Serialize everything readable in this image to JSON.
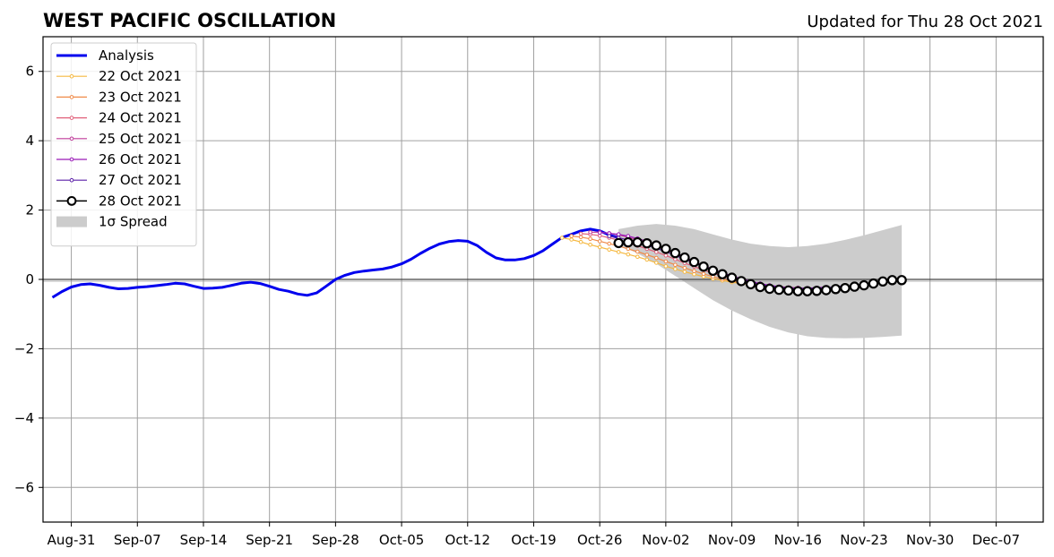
{
  "header": {
    "title": "WEST PACIFIC OSCILLATION",
    "updated": "Updated for Thu 28 Oct 2021"
  },
  "chart_data": {
    "type": "line",
    "title": "WEST PACIFIC OSCILLATION",
    "xlabel": "",
    "ylabel": "",
    "xlim": [
      "2021-08-28",
      "2021-12-12"
    ],
    "ylim": [
      -7,
      7
    ],
    "grid": true,
    "legend_position": "top-left",
    "x_ticks": [
      "Aug-31",
      "Sep-07",
      "Sep-14",
      "Sep-21",
      "Sep-28",
      "Oct-05",
      "Oct-12",
      "Oct-19",
      "Oct-26",
      "Nov-02",
      "Nov-09",
      "Nov-16",
      "Nov-23",
      "Nov-30",
      "Dec-07"
    ],
    "x_tick_dates": [
      "2021-08-31",
      "2021-09-07",
      "2021-09-14",
      "2021-09-21",
      "2021-09-28",
      "2021-10-05",
      "2021-10-12",
      "2021-10-19",
      "2021-10-26",
      "2021-11-02",
      "2021-11-09",
      "2021-11-16",
      "2021-11-23",
      "2021-11-30",
      "2021-12-07"
    ],
    "y_ticks": [
      6,
      4,
      2,
      0,
      -2,
      -4,
      -6
    ],
    "y_tick_labels": [
      "6",
      "4",
      "2",
      "0",
      "−2",
      "−4",
      "−6"
    ],
    "series": [
      {
        "name": "Analysis",
        "color": "#0000ee",
        "x": [
          "2021-08-29",
          "2021-08-30",
          "2021-08-31",
          "2021-09-01",
          "2021-09-02",
          "2021-09-03",
          "2021-09-04",
          "2021-09-05",
          "2021-09-06",
          "2021-09-07",
          "2021-09-08",
          "2021-09-09",
          "2021-09-10",
          "2021-09-11",
          "2021-09-12",
          "2021-09-13",
          "2021-09-14",
          "2021-09-15",
          "2021-09-16",
          "2021-09-17",
          "2021-09-18",
          "2021-09-19",
          "2021-09-20",
          "2021-09-21",
          "2021-09-22",
          "2021-09-23",
          "2021-09-24",
          "2021-09-25",
          "2021-09-26",
          "2021-09-27",
          "2021-09-28",
          "2021-09-29",
          "2021-09-30",
          "2021-10-01",
          "2021-10-02",
          "2021-10-03",
          "2021-10-04",
          "2021-10-05",
          "2021-10-06",
          "2021-10-07",
          "2021-10-08",
          "2021-10-09",
          "2021-10-10",
          "2021-10-11",
          "2021-10-12",
          "2021-10-13",
          "2021-10-14",
          "2021-10-15",
          "2021-10-16",
          "2021-10-17",
          "2021-10-18",
          "2021-10-19",
          "2021-10-20",
          "2021-10-21",
          "2021-10-22",
          "2021-10-23",
          "2021-10-24",
          "2021-10-25",
          "2021-10-26",
          "2021-10-27",
          "2021-10-28"
        ],
        "y": [
          -0.52,
          -0.35,
          -0.22,
          -0.15,
          -0.13,
          -0.17,
          -0.23,
          -0.27,
          -0.26,
          -0.23,
          -0.21,
          -0.18,
          -0.15,
          -0.11,
          -0.13,
          -0.2,
          -0.26,
          -0.25,
          -0.23,
          -0.17,
          -0.11,
          -0.08,
          -0.12,
          -0.2,
          -0.29,
          -0.34,
          -0.42,
          -0.46,
          -0.39,
          -0.2,
          0.0,
          0.12,
          0.2,
          0.24,
          0.27,
          0.3,
          0.36,
          0.45,
          0.58,
          0.75,
          0.9,
          1.02,
          1.09,
          1.12,
          1.1,
          0.98,
          0.78,
          0.62,
          0.56,
          0.56,
          0.6,
          0.69,
          0.83,
          1.02,
          1.21,
          1.3,
          1.4,
          1.45,
          1.4,
          1.28,
          1.2
        ]
      },
      {
        "name": "22 Oct 2021",
        "color": "#f5b840",
        "x": [
          "2021-10-22",
          "2021-10-23",
          "2021-10-24",
          "2021-10-25",
          "2021-10-26",
          "2021-10-27",
          "2021-10-28",
          "2021-10-29",
          "2021-10-30",
          "2021-10-31",
          "2021-11-01",
          "2021-11-02",
          "2021-11-03",
          "2021-11-04",
          "2021-11-05",
          "2021-11-06",
          "2021-11-07",
          "2021-11-08",
          "2021-11-09",
          "2021-11-10",
          "2021-11-11"
        ],
        "y": [
          1.2,
          1.15,
          1.08,
          1.0,
          0.93,
          0.86,
          0.79,
          0.72,
          0.65,
          0.57,
          0.48,
          0.38,
          0.3,
          0.22,
          0.15,
          0.08,
          0.02,
          -0.03,
          -0.08,
          -0.12,
          -0.15
        ]
      },
      {
        "name": "23 Oct 2021",
        "color": "#f08a48",
        "x": [
          "2021-10-23",
          "2021-10-24",
          "2021-10-25",
          "2021-10-26",
          "2021-10-27",
          "2021-10-28",
          "2021-10-29",
          "2021-10-30",
          "2021-10-31",
          "2021-11-01",
          "2021-11-02",
          "2021-11-03",
          "2021-11-04",
          "2021-11-05",
          "2021-11-06",
          "2021-11-07",
          "2021-11-08",
          "2021-11-09",
          "2021-11-10",
          "2021-11-11",
          "2021-11-12"
        ],
        "y": [
          1.25,
          1.22,
          1.17,
          1.1,
          1.03,
          0.96,
          0.88,
          0.8,
          0.71,
          0.62,
          0.52,
          0.42,
          0.33,
          0.24,
          0.16,
          0.08,
          0.01,
          -0.05,
          -0.1,
          -0.14,
          -0.18
        ]
      },
      {
        "name": "24 Oct 2021",
        "color": "#e0607a",
        "x": [
          "2021-10-24",
          "2021-10-25",
          "2021-10-26",
          "2021-10-27",
          "2021-10-28",
          "2021-10-29",
          "2021-10-30",
          "2021-10-31",
          "2021-11-01",
          "2021-11-02",
          "2021-11-03",
          "2021-11-04",
          "2021-11-05",
          "2021-11-06",
          "2021-11-07",
          "2021-11-08",
          "2021-11-09",
          "2021-11-10",
          "2021-11-11",
          "2021-11-12",
          "2021-11-13",
          "2021-11-14"
        ],
        "y": [
          1.32,
          1.3,
          1.26,
          1.2,
          1.13,
          1.05,
          0.97,
          0.88,
          0.79,
          0.69,
          0.58,
          0.47,
          0.37,
          0.27,
          0.18,
          0.09,
          0.01,
          -0.06,
          -0.12,
          -0.17,
          -0.21,
          -0.24
        ]
      },
      {
        "name": "25 Oct 2021",
        "color": "#c03c9a",
        "x": [
          "2021-10-25",
          "2021-10-26",
          "2021-10-27",
          "2021-10-28",
          "2021-10-29",
          "2021-10-30",
          "2021-10-31",
          "2021-11-01",
          "2021-11-02",
          "2021-11-03",
          "2021-11-04",
          "2021-11-05",
          "2021-11-06",
          "2021-11-07",
          "2021-11-08",
          "2021-11-09",
          "2021-11-10",
          "2021-11-11",
          "2021-11-12",
          "2021-11-13",
          "2021-11-14",
          "2021-11-15",
          "2021-11-16"
        ],
        "y": [
          1.36,
          1.36,
          1.33,
          1.28,
          1.22,
          1.14,
          1.05,
          0.95,
          0.85,
          0.73,
          0.61,
          0.49,
          0.38,
          0.27,
          0.17,
          0.08,
          0.0,
          -0.07,
          -0.13,
          -0.18,
          -0.21,
          -0.23,
          -0.24
        ]
      },
      {
        "name": "26 Oct 2021",
        "color": "#9a1ab8",
        "x": [
          "2021-10-26",
          "2021-10-27",
          "2021-10-28",
          "2021-10-29",
          "2021-10-30",
          "2021-10-31",
          "2021-11-01",
          "2021-11-02",
          "2021-11-03",
          "2021-11-04",
          "2021-11-05",
          "2021-11-06",
          "2021-11-07",
          "2021-11-08",
          "2021-11-09",
          "2021-11-10",
          "2021-11-11",
          "2021-11-12",
          "2021-11-13",
          "2021-11-14",
          "2021-11-15",
          "2021-11-16",
          "2021-11-17",
          "2021-11-18",
          "2021-11-19"
        ],
        "y": [
          1.35,
          1.33,
          1.3,
          1.25,
          1.18,
          1.1,
          1.0,
          0.89,
          0.77,
          0.65,
          0.52,
          0.4,
          0.29,
          0.19,
          0.1,
          0.02,
          -0.06,
          -0.12,
          -0.17,
          -0.21,
          -0.24,
          -0.25,
          -0.25,
          -0.24,
          -0.22
        ]
      },
      {
        "name": "27 Oct 2021",
        "color": "#5a1fa8",
        "x": [
          "2021-10-27",
          "2021-10-28",
          "2021-10-29",
          "2021-10-30",
          "2021-10-31",
          "2021-11-01",
          "2021-11-02",
          "2021-11-03",
          "2021-11-04",
          "2021-11-05",
          "2021-11-06",
          "2021-11-07",
          "2021-11-08",
          "2021-11-09",
          "2021-11-10",
          "2021-11-11",
          "2021-11-12",
          "2021-11-13",
          "2021-11-14",
          "2021-11-15",
          "2021-11-16",
          "2021-11-17",
          "2021-11-18",
          "2021-11-19",
          "2021-11-20",
          "2021-11-21"
        ],
        "y": [
          1.25,
          1.2,
          1.14,
          1.07,
          0.99,
          0.9,
          0.8,
          0.69,
          0.58,
          0.47,
          0.37,
          0.27,
          0.17,
          0.08,
          0.0,
          -0.08,
          -0.14,
          -0.19,
          -0.23,
          -0.26,
          -0.27,
          -0.27,
          -0.26,
          -0.24,
          -0.21,
          -0.18
        ]
      },
      {
        "name": "28 Oct 2021",
        "color": "#000000",
        "x": [
          "2021-10-28",
          "2021-10-29",
          "2021-10-30",
          "2021-10-31",
          "2021-11-01",
          "2021-11-02",
          "2021-11-03",
          "2021-11-04",
          "2021-11-05",
          "2021-11-06",
          "2021-11-07",
          "2021-11-08",
          "2021-11-09",
          "2021-11-10",
          "2021-11-11",
          "2021-11-12",
          "2021-11-13",
          "2021-11-14",
          "2021-11-15",
          "2021-11-16",
          "2021-11-17",
          "2021-11-18",
          "2021-11-19",
          "2021-11-20",
          "2021-11-21",
          "2021-11-22",
          "2021-11-23",
          "2021-11-24",
          "2021-11-25",
          "2021-11-26",
          "2021-11-27"
        ],
        "y": [
          1.05,
          1.07,
          1.07,
          1.04,
          0.98,
          0.88,
          0.76,
          0.63,
          0.5,
          0.37,
          0.25,
          0.15,
          0.05,
          -0.05,
          -0.14,
          -0.22,
          -0.27,
          -0.3,
          -0.32,
          -0.34,
          -0.34,
          -0.33,
          -0.31,
          -0.28,
          -0.25,
          -0.21,
          -0.17,
          -0.12,
          -0.06,
          -0.02,
          -0.02
        ]
      }
    ],
    "spread": {
      "name": "1σ Spread",
      "color": "#cccccc",
      "x": [
        "2021-10-28",
        "2021-10-30",
        "2021-11-01",
        "2021-11-03",
        "2021-11-05",
        "2021-11-07",
        "2021-11-09",
        "2021-11-11",
        "2021-11-13",
        "2021-11-15",
        "2021-11-17",
        "2021-11-19",
        "2021-11-21",
        "2021-11-23",
        "2021-11-25",
        "2021-11-27"
      ],
      "upper": [
        1.45,
        1.55,
        1.6,
        1.55,
        1.45,
        1.3,
        1.15,
        1.03,
        0.96,
        0.93,
        0.96,
        1.03,
        1.14,
        1.27,
        1.42,
        1.57
      ],
      "lower": [
        1.0,
        0.75,
        0.45,
        0.1,
        -0.25,
        -0.6,
        -0.9,
        -1.15,
        -1.37,
        -1.53,
        -1.64,
        -1.69,
        -1.7,
        -1.69,
        -1.66,
        -1.62
      ]
    }
  },
  "legend": {
    "items": [
      {
        "label": "Analysis",
        "color": "#0000ee",
        "kind": "thick-line"
      },
      {
        "label": "22 Oct 2021",
        "color": "#f5b840",
        "kind": "small-marker"
      },
      {
        "label": "23 Oct 2021",
        "color": "#f08a48",
        "kind": "small-marker"
      },
      {
        "label": "24 Oct 2021",
        "color": "#e0607a",
        "kind": "small-marker"
      },
      {
        "label": "25 Oct 2021",
        "color": "#c03c9a",
        "kind": "small-marker"
      },
      {
        "label": "26 Oct 2021",
        "color": "#9a1ab8",
        "kind": "small-marker"
      },
      {
        "label": "27 Oct 2021",
        "color": "#5a1fa8",
        "kind": "small-marker"
      },
      {
        "label": "28 Oct 2021",
        "color": "#000000",
        "kind": "big-marker"
      },
      {
        "label": "1σ Spread",
        "color": "#cccccc",
        "kind": "patch"
      }
    ]
  }
}
